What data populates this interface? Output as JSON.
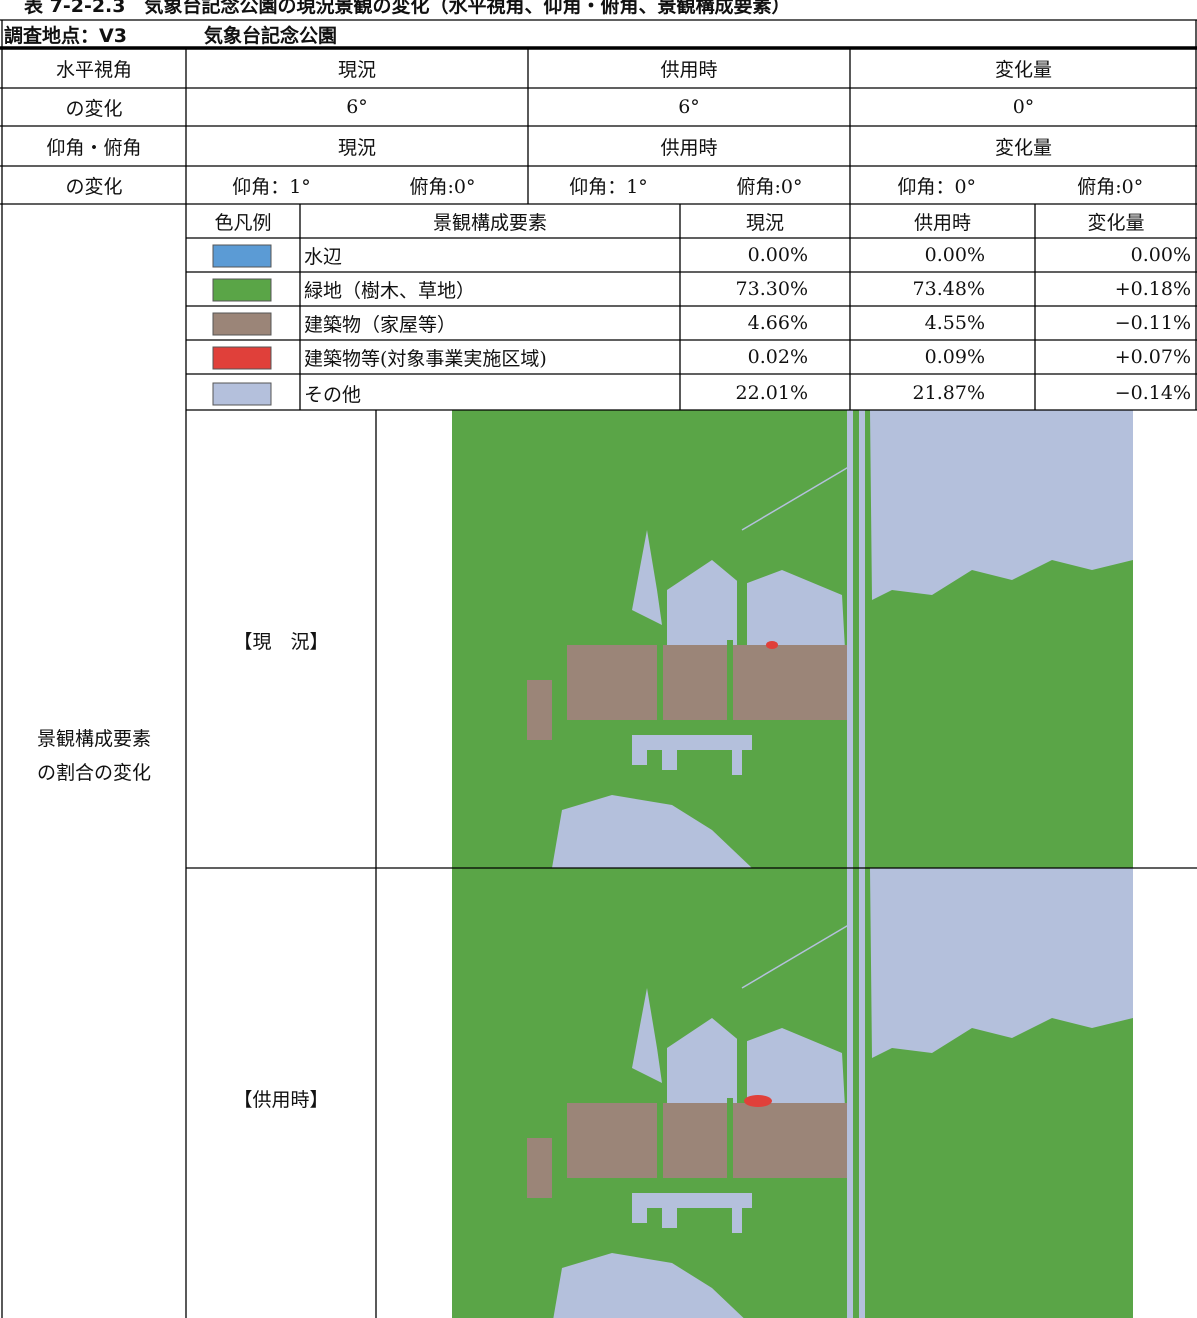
{
  "title": "表 7-2-2.3　気象台記念公園の現況景観の変化（水平視角、仰角・俯角、景観構成要素）",
  "survey_point": {
    "label": "調査地点：V3",
    "name": "気象台記念公園"
  },
  "horizontal": {
    "label": [
      "水平視角",
      "の変化"
    ],
    "headers": [
      "現況",
      "供用時",
      "変化量"
    ],
    "values": [
      "6°",
      "6°",
      "0°"
    ]
  },
  "elevation": {
    "label": [
      "仰角・俯角",
      "の変化"
    ],
    "headers": [
      "現況",
      "供用時",
      "変化量"
    ],
    "values": [
      [
        "仰角：1°",
        "俯角:0°"
      ],
      [
        "仰角：1°",
        "俯角:0°"
      ],
      [
        "仰角：0°",
        "俯角:0°"
      ]
    ]
  },
  "composition": {
    "label": [
      "景観構成要素",
      "の割合の変化"
    ],
    "headers": [
      "色凡例",
      "景観構成要素",
      "現況",
      "供用時",
      "変化量"
    ],
    "rows": [
      {
        "color": "#5b9bd5",
        "name": "水辺",
        "current": "0.00%",
        "future": "0.00%",
        "change": "0.00%"
      },
      {
        "color": "#5aa547",
        "name": "緑地（樹木、草地）",
        "current": "73.30%",
        "future": "73.48%",
        "change": "+0.18%"
      },
      {
        "color": "#9b8578",
        "name": "建築物（家屋等）",
        "current": "4.66%",
        "future": "4.55%",
        "change": "−0.11%"
      },
      {
        "color": "#e0403a",
        "name": "建築物等(対象事業実施区域)",
        "current": "0.02%",
        "future": "0.09%",
        "change": "+0.07%"
      },
      {
        "color": "#b4c0dc",
        "name": "その他",
        "current": "22.01%",
        "future": "21.87%",
        "change": "−0.14%"
      }
    ],
    "images": [
      {
        "label": "【現　況】"
      },
      {
        "label": "【供用時】"
      }
    ]
  }
}
